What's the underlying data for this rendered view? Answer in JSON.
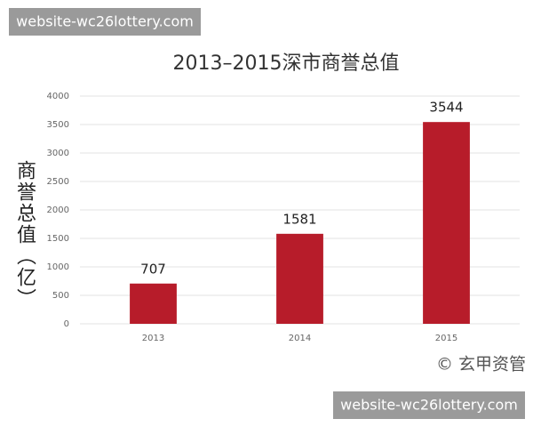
{
  "chart_data": {
    "type": "bar",
    "title": "2013–2015深市商誉总值",
    "y_label": "商誉总值（亿）",
    "categories": [
      "2013",
      "2014",
      "2015"
    ],
    "values": [
      707,
      1581,
      3544
    ],
    "color": "#b71c2a",
    "ylim": [
      0,
      4000
    ],
    "yticks": [
      0,
      500,
      1000,
      1500,
      2000,
      2500,
      3000,
      3500,
      4000
    ],
    "grid": true,
    "source": "© 玄甲资管",
    "watermarks": [
      "website-wc26lottery.com",
      "website-wc26lottery.com"
    ]
  }
}
